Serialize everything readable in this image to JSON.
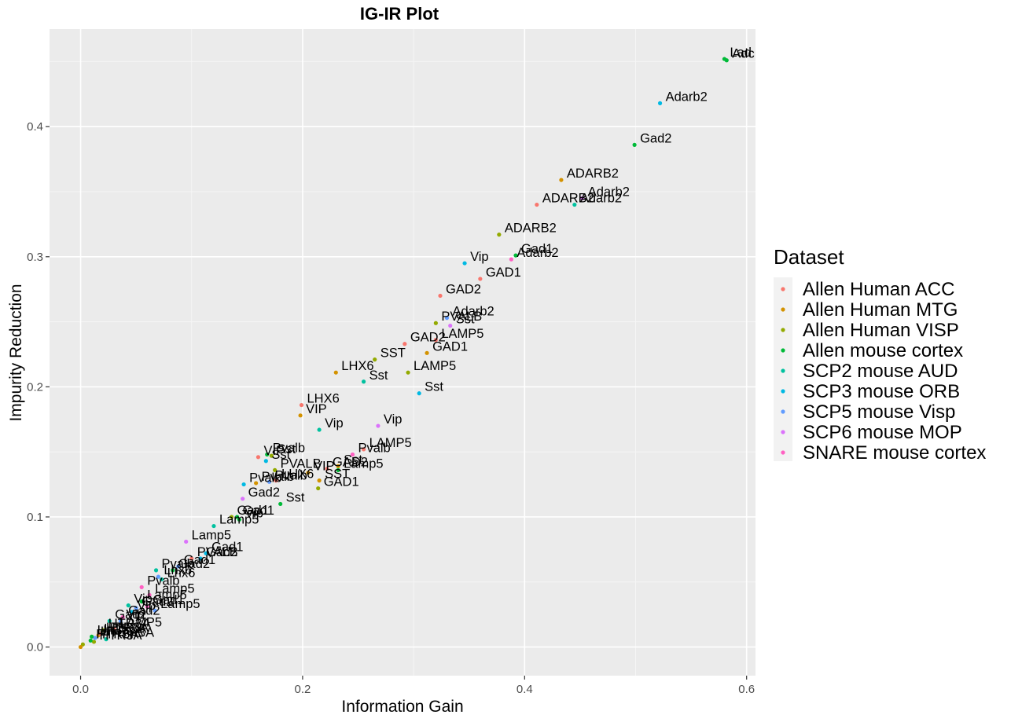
{
  "chart_data": {
    "type": "scatter",
    "title": "IG-IR Plot",
    "xlabel": "Information Gain",
    "ylabel": "Impurity Reduction",
    "xlim": [
      -0.028,
      0.608
    ],
    "ylim": [
      -0.022,
      0.475
    ],
    "xticks": [
      "0.0",
      "0.2",
      "0.4",
      "0.6"
    ],
    "xtick_values": [
      0.0,
      0.2,
      0.4,
      0.6
    ],
    "yticks": [
      "0.0",
      "0.1",
      "0.2",
      "0.3",
      "0.4"
    ],
    "ytick_values": [
      0.0,
      0.1,
      0.2,
      0.3,
      0.4
    ],
    "grid": true,
    "legend": {
      "title": "Dataset",
      "placement": "right",
      "entries": [
        {
          "name": "Allen Human ACC",
          "color": "#F8766D"
        },
        {
          "name": "Allen Human MTG",
          "color": "#D39200"
        },
        {
          "name": "Allen Human VISP",
          "color": "#93AA00"
        },
        {
          "name": "Allen mouse cortex",
          "color": "#00BA38"
        },
        {
          "name": "SCP2 mouse AUD",
          "color": "#00C19F"
        },
        {
          "name": "SCP3 mouse ORB",
          "color": "#00B9E3"
        },
        {
          "name": "SCP5 mouse Visp",
          "color": "#619CFF"
        },
        {
          "name": "SCP6 mouse MOP",
          "color": "#DB72FB"
        },
        {
          "name": "SNARE mouse cortex",
          "color": "#FF61C3"
        }
      ]
    },
    "points": [
      {
        "x": 0.58,
        "y": 0.452,
        "label": "Lad",
        "series": 3
      },
      {
        "x": 0.582,
        "y": 0.451,
        "label": "Adc",
        "series": 3
      },
      {
        "x": 0.522,
        "y": 0.418,
        "label": "Adarb2",
        "series": 5
      },
      {
        "x": 0.499,
        "y": 0.386,
        "label": "Gad2",
        "series": 3
      },
      {
        "x": 0.433,
        "y": 0.359,
        "label": "ADARB2",
        "series": 1
      },
      {
        "x": 0.452,
        "y": 0.345,
        "label": "Adarb2",
        "series": 7
      },
      {
        "x": 0.445,
        "y": 0.34,
        "label": "Adarb2",
        "series": 4
      },
      {
        "x": 0.411,
        "y": 0.34,
        "label": "ADARB2",
        "series": 0
      },
      {
        "x": 0.377,
        "y": 0.317,
        "label": "ADARB2",
        "series": 2
      },
      {
        "x": 0.392,
        "y": 0.301,
        "label": "Gad1",
        "series": 3
      },
      {
        "x": 0.388,
        "y": 0.298,
        "label": "Adarb2",
        "series": 8
      },
      {
        "x": 0.346,
        "y": 0.295,
        "label": "Vip",
        "series": 5
      },
      {
        "x": 0.36,
        "y": 0.283,
        "label": "GAD1",
        "series": 0
      },
      {
        "x": 0.324,
        "y": 0.27,
        "label": "GAD2",
        "series": 0
      },
      {
        "x": 0.33,
        "y": 0.253,
        "label": "Adarb2",
        "series": 6
      },
      {
        "x": 0.32,
        "y": 0.249,
        "label": "PVALB",
        "series": 2
      },
      {
        "x": 0.333,
        "y": 0.247,
        "label": "Sst",
        "series": 7
      },
      {
        "x": 0.312,
        "y": 0.226,
        "label": "GAD1",
        "series": 1
      },
      {
        "x": 0.292,
        "y": 0.233,
        "label": "GAD2",
        "series": 0
      },
      {
        "x": 0.32,
        "y": 0.236,
        "label": "LAMP5",
        "series": 0
      },
      {
        "x": 0.265,
        "y": 0.221,
        "label": "SST",
        "series": 2
      },
      {
        "x": 0.295,
        "y": 0.211,
        "label": "LAMP5",
        "series": 2
      },
      {
        "x": 0.23,
        "y": 0.211,
        "label": "LHX6",
        "series": 1
      },
      {
        "x": 0.255,
        "y": 0.204,
        "label": "Sst",
        "series": 4
      },
      {
        "x": 0.305,
        "y": 0.195,
        "label": "Sst",
        "series": 5
      },
      {
        "x": 0.199,
        "y": 0.186,
        "label": "LHX6",
        "series": 0
      },
      {
        "x": 0.198,
        "y": 0.178,
        "label": "VIP",
        "series": 1
      },
      {
        "x": 0.268,
        "y": 0.17,
        "label": "Vip",
        "series": 7
      },
      {
        "x": 0.215,
        "y": 0.167,
        "label": "Vip",
        "series": 4
      },
      {
        "x": 0.255,
        "y": 0.152,
        "label": "LAMP5",
        "series": 0
      },
      {
        "x": 0.16,
        "y": 0.146,
        "label": "VIP",
        "series": 0
      },
      {
        "x": 0.168,
        "y": 0.148,
        "label": "Pvalb",
        "series": 3
      },
      {
        "x": 0.172,
        "y": 0.147,
        "label": "Sst",
        "series": 2
      },
      {
        "x": 0.167,
        "y": 0.143,
        "label": "Sst",
        "series": 5
      },
      {
        "x": 0.245,
        "y": 0.148,
        "label": "Pvalb",
        "series": 8
      },
      {
        "x": 0.232,
        "y": 0.139,
        "label": "Sst",
        "series": 1
      },
      {
        "x": 0.222,
        "y": 0.137,
        "label": "GAD2",
        "series": 0
      },
      {
        "x": 0.205,
        "y": 0.134,
        "label": "VIP",
        "series": 1
      },
      {
        "x": 0.175,
        "y": 0.136,
        "label": "PVALB",
        "series": 2
      },
      {
        "x": 0.215,
        "y": 0.128,
        "label": "SST",
        "series": 1
      },
      {
        "x": 0.232,
        "y": 0.136,
        "label": "Lamp5",
        "series": 3
      },
      {
        "x": 0.176,
        "y": 0.128,
        "label": "LHX6",
        "series": 0
      },
      {
        "x": 0.17,
        "y": 0.127,
        "label": "Pvalb",
        "series": 6
      },
      {
        "x": 0.158,
        "y": 0.126,
        "label": "Pvalb",
        "series": 1
      },
      {
        "x": 0.147,
        "y": 0.125,
        "label": "Pvalb",
        "series": 5
      },
      {
        "x": 0.214,
        "y": 0.122,
        "label": "GAD1",
        "series": 2
      },
      {
        "x": 0.146,
        "y": 0.114,
        "label": "Gad2",
        "series": 7
      },
      {
        "x": 0.18,
        "y": 0.11,
        "label": "Sst",
        "series": 3
      },
      {
        "x": 0.141,
        "y": 0.1,
        "label": "Gad1",
        "series": 3
      },
      {
        "x": 0.143,
        "y": 0.098,
        "label": "Vip",
        "series": 3
      },
      {
        "x": 0.136,
        "y": 0.1,
        "label": "Gad1",
        "series": 2
      },
      {
        "x": 0.12,
        "y": 0.093,
        "label": "Lamp5",
        "series": 4
      },
      {
        "x": 0.095,
        "y": 0.081,
        "label": "Lamp5",
        "series": 7
      },
      {
        "x": 0.1,
        "y": 0.068,
        "label": "PVALB",
        "series": 0
      },
      {
        "x": 0.113,
        "y": 0.072,
        "label": "Gad1",
        "series": 5
      },
      {
        "x": 0.108,
        "y": 0.068,
        "label": "Gad2",
        "series": 5
      },
      {
        "x": 0.068,
        "y": 0.059,
        "label": "Pvalb",
        "series": 4
      },
      {
        "x": 0.088,
        "y": 0.062,
        "label": "Gad1",
        "series": 6
      },
      {
        "x": 0.083,
        "y": 0.059,
        "label": "Gad2",
        "series": 3
      },
      {
        "x": 0.07,
        "y": 0.054,
        "label": "Lhx6",
        "series": 6
      },
      {
        "x": 0.073,
        "y": 0.052,
        "label": "Lhx6",
        "series": 4
      },
      {
        "x": 0.055,
        "y": 0.046,
        "label": "Pvalb",
        "series": 8
      },
      {
        "x": 0.062,
        "y": 0.04,
        "label": "Lamp5",
        "series": 8
      },
      {
        "x": 0.055,
        "y": 0.035,
        "label": "Lamp5",
        "series": 3
      },
      {
        "x": 0.043,
        "y": 0.032,
        "label": "Vip",
        "series": 4
      },
      {
        "x": 0.06,
        "y": 0.031,
        "label": "Gad1",
        "series": 8
      },
      {
        "x": 0.05,
        "y": 0.03,
        "label": "Gad2",
        "series": 6
      },
      {
        "x": 0.067,
        "y": 0.028,
        "label": "Lamp5",
        "series": 6
      },
      {
        "x": 0.046,
        "y": 0.027,
        "label": "Vip",
        "series": 5
      },
      {
        "x": 0.038,
        "y": 0.023,
        "label": "Gad2",
        "series": 8
      },
      {
        "x": 0.036,
        "y": 0.02,
        "label": "Vip",
        "series": 6
      },
      {
        "x": 0.026,
        "y": 0.02,
        "label": "Gad2",
        "series": 4
      },
      {
        "x": 0.03,
        "y": 0.014,
        "label": "LAMP5",
        "series": 0
      },
      {
        "x": 0.02,
        "y": 0.013,
        "label": "HTR3A",
        "series": 2
      },
      {
        "x": 0.016,
        "y": 0.009,
        "label": "HTR3A",
        "series": 1
      },
      {
        "x": 0.023,
        "y": 0.006,
        "label": "HTR3A",
        "series": 4
      },
      {
        "x": 0.018,
        "y": 0.01,
        "label": "HTR3A",
        "series": 0
      },
      {
        "x": 0.013,
        "y": 0.007,
        "label": "HTR3A",
        "series": 6
      },
      {
        "x": 0.01,
        "y": 0.008,
        "label": "Htr3a",
        "series": 3
      },
      {
        "x": 0.012,
        "y": 0.004,
        "label": "HTR3A",
        "series": 2
      },
      {
        "x": 0.009,
        "y": 0.005,
        "label": "HTR3A",
        "series": 3
      },
      {
        "x": 0.002,
        "y": 0.002,
        "label": "",
        "series": 2
      },
      {
        "x": 0.0,
        "y": 0.0,
        "label": "",
        "series": 1
      }
    ]
  }
}
